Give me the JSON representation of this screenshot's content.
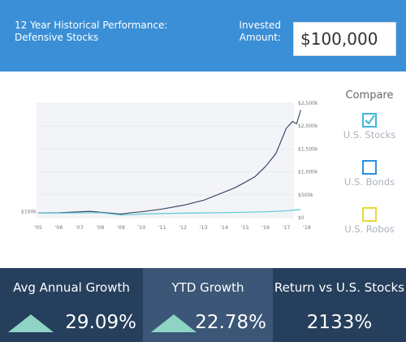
{
  "header": {
    "title": "12 Year Historical Performance: Defensive Stocks",
    "invested_label": "Invested Amount:",
    "invested_amount": "$100,000"
  },
  "chart_data": {
    "type": "line",
    "xlim": [
      2005,
      2018
    ],
    "xticks": [
      {
        "value": 2005,
        "label": "'05"
      },
      {
        "value": 2006,
        "label": "'06"
      },
      {
        "value": 2007,
        "label": "'07"
      },
      {
        "value": 2008,
        "label": "'08"
      },
      {
        "value": 2009,
        "label": "'09"
      },
      {
        "value": 2010,
        "label": "'10"
      },
      {
        "value": 2011,
        "label": "'11"
      },
      {
        "value": 2012,
        "label": "'12"
      },
      {
        "value": 2013,
        "label": "'13"
      },
      {
        "value": 2014,
        "label": "'14"
      },
      {
        "value": 2015,
        "label": "'15"
      },
      {
        "value": 2016,
        "label": "'16"
      },
      {
        "value": 2017,
        "label": "'17"
      },
      {
        "value": 2018,
        "label": "'18"
      }
    ],
    "ylim": [
      0,
      2500
    ],
    "yticks": [
      {
        "value": 0,
        "label": "$0"
      },
      {
        "value": 500,
        "label": "$500k"
      },
      {
        "value": 1000,
        "label": "$1,000k"
      },
      {
        "value": 1500,
        "label": "$1,500k"
      },
      {
        "value": 2000,
        "label": "$2,000k"
      },
      {
        "value": 2500,
        "label": "$2,500k"
      }
    ],
    "grid": true,
    "annotation": {
      "text": "$100k",
      "value": 100
    },
    "series": [
      {
        "color": "#3d4a6b",
        "x": [
          2005,
          2006,
          2007,
          2007.5,
          2008,
          2009,
          2009.5,
          2010,
          2011,
          2012,
          2013,
          2014,
          2014.5,
          2015,
          2015.5,
          2016,
          2016.5,
          2017,
          2017.3,
          2017.5,
          2017.7
        ],
        "values": [
          100,
          110,
          130,
          140,
          120,
          80,
          110,
          130,
          190,
          270,
          380,
          560,
          650,
          770,
          900,
          1120,
          1400,
          1950,
          2100,
          2050,
          2350
        ]
      },
      {
        "color": "#5bc8d8",
        "x": [
          2005,
          2007,
          2008,
          2009,
          2010,
          2012,
          2014,
          2016,
          2017,
          2017.7
        ],
        "values": [
          100,
          105,
          110,
          60,
          80,
          100,
          110,
          130,
          150,
          180
        ]
      }
    ]
  },
  "compare": {
    "title": "Compare",
    "options": [
      {
        "label": "U.S. Stocks",
        "color": "#3fb8d8",
        "checked": true
      },
      {
        "label": "U.S. Bonds",
        "color": "#2a8fe0",
        "checked": false
      },
      {
        "label": "U.S. Robos",
        "color": "#e5d93a",
        "checked": false
      }
    ]
  },
  "stats": [
    {
      "label": "Avg Annual Growth",
      "value": "29.09%",
      "arrow": true
    },
    {
      "label": "YTD Growth",
      "value": "22.78%",
      "arrow": true
    },
    {
      "label": "Return vs U.S. Stocks",
      "value": "2133%",
      "arrow": false
    }
  ]
}
